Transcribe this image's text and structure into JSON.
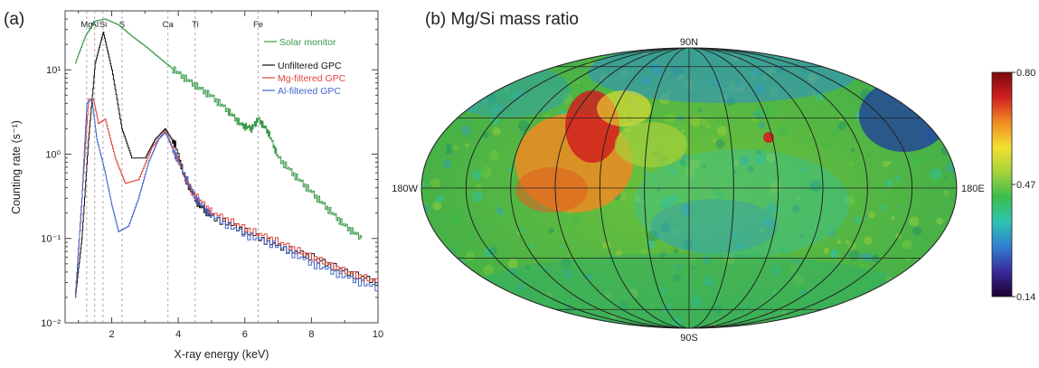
{
  "panel_a": {
    "label": "(a)",
    "colors": {
      "solar": "#3a9a4a",
      "unfiltered": "#111111",
      "mg": "#e0463c",
      "al": "#4466cc",
      "element_lines": "#999999"
    }
  },
  "panel_b": {
    "label": "(b) Mg/Si mass ratio",
    "lat_top": "90N",
    "lat_bottom": "90S",
    "lon_left": "180W",
    "lon_right": "180E",
    "colorbar": {
      "max": "0.80",
      "mid": "0.47",
      "min": "0.14",
      "stops": [
        "#1a0030",
        "#3a2a9a",
        "#2f7fd0",
        "#2ec4b0",
        "#3cbd4e",
        "#a6d23a",
        "#f2e030",
        "#f08a22",
        "#d02020",
        "#7a0a0a"
      ]
    }
  },
  "chart_data": [
    {
      "type": "line",
      "title": "(a)",
      "xlabel": "X-ray energy (keV)",
      "ylabel": "Counting rate (s⁻¹)",
      "xlim": [
        0.6,
        10
      ],
      "ylim": [
        0.01,
        50
      ],
      "yscale": "log",
      "xticks": [
        2,
        4,
        6,
        8,
        10
      ],
      "yticks": [
        {
          "value": 0.01,
          "label": "10⁻²"
        },
        {
          "value": 0.1,
          "label": "10⁻¹"
        },
        {
          "value": 1,
          "label": "10⁰"
        },
        {
          "value": 10,
          "label": "10¹"
        }
      ],
      "element_lines": [
        {
          "name": "Mg",
          "x": 1.25
        },
        {
          "name": "Al",
          "x": 1.49
        },
        {
          "name": "Si",
          "x": 1.74
        },
        {
          "name": "S",
          "x": 2.31
        },
        {
          "name": "Ca",
          "x": 3.69
        },
        {
          "name": "Ti",
          "x": 4.51
        },
        {
          "name": "Fe",
          "x": 6.4
        }
      ],
      "legend_position": "top-right",
      "series": [
        {
          "name": "Solar monitor",
          "color": "#3a9a4a",
          "x": [
            0.9,
            1.2,
            1.5,
            1.8,
            2.2,
            2.6,
            3.0,
            3.5,
            4.0,
            4.5,
            5.0,
            5.5,
            5.9,
            6.2,
            6.4,
            6.7,
            7.0,
            7.5,
            8.0,
            8.5,
            9.0,
            9.5
          ],
          "y": [
            12,
            25,
            38,
            40,
            34,
            25,
            19,
            13,
            9,
            6.5,
            4.8,
            3.2,
            2.2,
            2.0,
            2.6,
            1.8,
            0.9,
            0.55,
            0.35,
            0.22,
            0.14,
            0.1
          ]
        },
        {
          "name": "Unfiltered GPC",
          "color": "#111111",
          "x": [
            0.9,
            1.1,
            1.3,
            1.5,
            1.74,
            2.0,
            2.3,
            2.6,
            3.0,
            3.3,
            3.6,
            3.9,
            4.2,
            4.6,
            5.0,
            6.0,
            7.0,
            8.0,
            9.0,
            10.0
          ],
          "y": [
            0.02,
            0.1,
            1.5,
            12,
            28,
            10,
            2.0,
            0.9,
            0.9,
            1.5,
            2.0,
            1.3,
            0.5,
            0.25,
            0.18,
            0.12,
            0.08,
            0.06,
            0.04,
            0.03
          ]
        },
        {
          "name": "Mg-filtered GPC",
          "color": "#e0463c",
          "x": [
            0.9,
            1.1,
            1.3,
            1.45,
            1.6,
            1.8,
            2.1,
            2.4,
            2.8,
            3.2,
            3.6,
            4.0,
            4.4,
            5.0,
            6.0,
            7.0,
            8.0,
            9.0,
            10.0
          ],
          "y": [
            0.02,
            0.3,
            4.5,
            4.5,
            2.3,
            2.6,
            0.9,
            0.45,
            0.5,
            1.2,
            1.9,
            0.8,
            0.35,
            0.2,
            0.13,
            0.09,
            0.06,
            0.04,
            0.03
          ]
        },
        {
          "name": "Al-filtered GPC",
          "color": "#4466cc",
          "x": [
            0.9,
            1.1,
            1.25,
            1.4,
            1.55,
            1.8,
            2.0,
            2.2,
            2.5,
            2.8,
            3.1,
            3.4,
            3.6,
            4.0,
            4.5,
            5.0,
            6.0,
            7.0,
            8.0,
            9.0,
            10.0
          ],
          "y": [
            0.02,
            0.3,
            4.0,
            4.5,
            1.5,
            0.6,
            0.25,
            0.12,
            0.14,
            0.3,
            0.8,
            1.5,
            1.8,
            0.8,
            0.3,
            0.18,
            0.11,
            0.08,
            0.05,
            0.035,
            0.025
          ]
        }
      ]
    },
    {
      "type": "heatmap",
      "title": "(b) Mg/Si mass ratio",
      "projection": "Mollweide",
      "colorbar_range": [
        0.14,
        0.8
      ],
      "colorbar_ticks": [
        0.14,
        0.47,
        0.8
      ],
      "lon_labels": [
        "180W",
        "180E"
      ],
      "lat_labels": [
        "90N",
        "90S"
      ]
    }
  ]
}
